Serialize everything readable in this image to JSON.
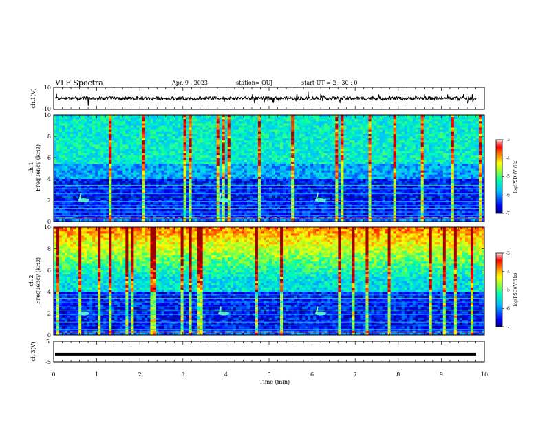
{
  "header": {
    "title": "VLF Spectra",
    "date": "Apr. 9 , 2023",
    "station": "station= OUJ",
    "start_ut": "start UT = 2 : 30 : 0"
  },
  "colormap": {
    "stops": [
      "#00008a",
      "#0000ff",
      "#0080ff",
      "#00ffff",
      "#80ff80",
      "#ffff00",
      "#ff8000",
      "#ff0000",
      "#a00000",
      "#ffffff"
    ]
  },
  "chart_data": [
    {
      "type": "line",
      "name": "waveform-ch1",
      "ylabel": "ch.1(V)",
      "ylim": [
        -10,
        10
      ],
      "yticks": [
        "10",
        "-10"
      ],
      "level": 0,
      "color": "#000000"
    },
    {
      "type": "heatmap",
      "name": "spectrogram-ch1",
      "ylabel": "ch.1\nFrequency (kHz)",
      "xlim": [
        0,
        10
      ],
      "ylim": [
        0,
        10
      ],
      "yticks": [
        "0",
        "2",
        "4",
        "6",
        "8",
        "10"
      ],
      "colorbar": {
        "label": "log(PSD)(V²/Hz)",
        "range": [
          -7,
          -3
        ],
        "ticks": [
          "-3",
          "-4",
          "-5",
          "-6",
          "-7"
        ]
      },
      "burst_times_min": [
        0.6,
        3.85,
        6.1
      ],
      "burst_freq_khz": 2.0
    },
    {
      "type": "heatmap",
      "name": "spectrogram-ch2",
      "ylabel": "ch.2\nFrequency (kHz)",
      "xlim": [
        0,
        10
      ],
      "ylim": [
        0,
        10
      ],
      "yticks": [
        "0",
        "2",
        "4",
        "6",
        "8",
        "10"
      ],
      "colorbar": {
        "label": "log(PSD)(V²/Hz)",
        "range": [
          -7,
          -3
        ],
        "ticks": [
          "-3",
          "-4",
          "-5",
          "-6",
          "-7"
        ]
      },
      "burst_times_min": [
        0.6,
        3.85,
        6.1
      ],
      "burst_freq_khz": 2.0
    },
    {
      "type": "line",
      "name": "waveform-ch3",
      "ylabel": "ch.3(V)",
      "ylim": [
        -5,
        5
      ],
      "yticks": [
        "5",
        "-5"
      ],
      "level": -1.3,
      "color": "#000000"
    }
  ],
  "xaxis": {
    "label": "Time (min)",
    "xlim": [
      0,
      10
    ],
    "ticks": [
      "0",
      "1",
      "2",
      "3",
      "4",
      "5",
      "6",
      "7",
      "8",
      "9",
      "10"
    ]
  }
}
